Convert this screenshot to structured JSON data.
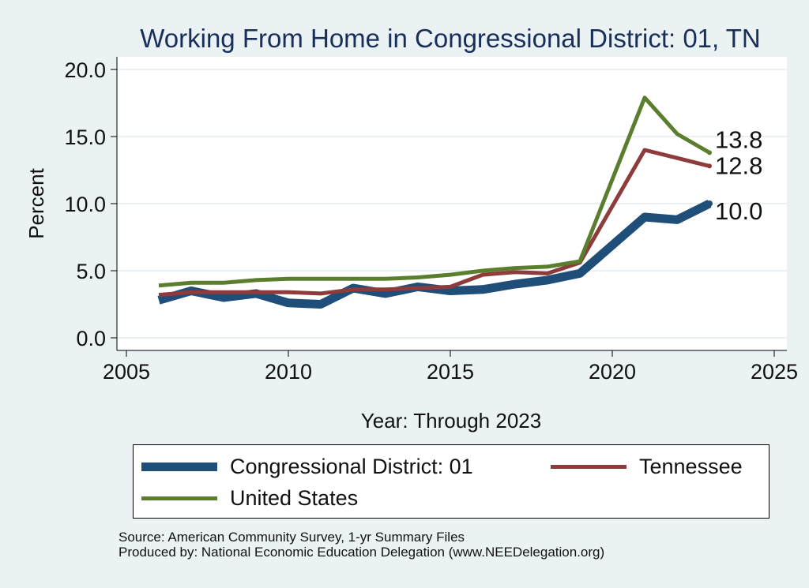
{
  "chart_data": {
    "type": "line",
    "title": "Working From Home in Congressional District: 01, TN",
    "xlabel": "Year: Through 2023",
    "ylabel": "Percent",
    "xlim": [
      2005,
      2025
    ],
    "ylim": [
      0,
      20
    ],
    "xticks": [
      "2005",
      "2010",
      "2015",
      "2020",
      "2025"
    ],
    "yticks": [
      "0.0",
      "5.0",
      "10.0",
      "15.0",
      "20.0"
    ],
    "grid": true,
    "legend_position": "bottom",
    "series": [
      {
        "name": "Congressional District: 01",
        "color": "#1f4e79",
        "x": [
          2006,
          2007,
          2008,
          2009,
          2010,
          2011,
          2012,
          2013,
          2014,
          2015,
          2016,
          2017,
          2018,
          2019,
          2021,
          2022,
          2023
        ],
        "values": [
          2.8,
          3.5,
          3.0,
          3.3,
          2.6,
          2.5,
          3.7,
          3.3,
          3.8,
          3.5,
          3.6,
          4.0,
          4.3,
          4.8,
          9.0,
          8.8,
          10.0
        ],
        "end_label": "10.0"
      },
      {
        "name": "Tennessee",
        "color": "#8e3b3b",
        "x": [
          2006,
          2007,
          2008,
          2009,
          2010,
          2011,
          2012,
          2013,
          2014,
          2015,
          2016,
          2017,
          2018,
          2019,
          2021,
          2022,
          2023
        ],
        "values": [
          3.2,
          3.4,
          3.4,
          3.4,
          3.4,
          3.3,
          3.6,
          3.6,
          3.7,
          3.8,
          4.7,
          4.9,
          4.8,
          5.6,
          14.0,
          13.4,
          12.8
        ],
        "end_label": "12.8"
      },
      {
        "name": "United States",
        "color": "#5a7e2e",
        "x": [
          2006,
          2007,
          2008,
          2009,
          2010,
          2011,
          2012,
          2013,
          2014,
          2015,
          2016,
          2017,
          2018,
          2019,
          2021,
          2022,
          2023
        ],
        "values": [
          3.9,
          4.1,
          4.1,
          4.3,
          4.4,
          4.4,
          4.4,
          4.4,
          4.5,
          4.7,
          5.0,
          5.2,
          5.3,
          5.7,
          17.9,
          15.2,
          13.8
        ],
        "end_label": "13.8"
      }
    ]
  },
  "source_text": {
    "line1": "Source: American Community Survey, 1-yr Summary Files",
    "line2": "Produced by: National Economic Education Delegation (www.NEEDelegation.org)"
  }
}
